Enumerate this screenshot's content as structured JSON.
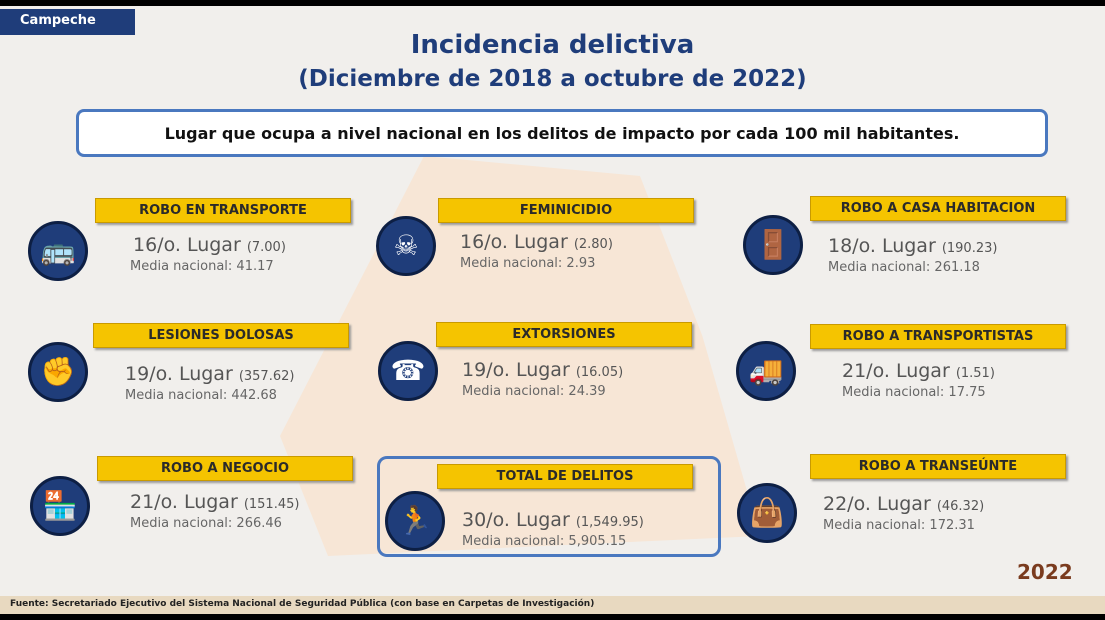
{
  "state": "Campeche",
  "title": "Incidencia delictiva",
  "subtitle": "(Diciembre de 2018 a octubre de 2022)",
  "description": "Lugar que ocupa a nivel nacional en los delitos de impacto por cada 100 mil habitantes.",
  "crimes": [
    {
      "name": "ROBO  EN TRANSPORTE",
      "lugar": "16/o. Lugar",
      "valor": "(7.00)",
      "media": "Media nacional:  41.17",
      "icon": "bus-icon"
    },
    {
      "name": "FEMINICIDIO",
      "lugar": "16/o. Lugar",
      "valor": "(2.80)",
      "media": "Media nacional: 2.93",
      "icon": "victim-icon"
    },
    {
      "name": "ROBO A CASA HABITACION",
      "lugar": "18/o. Lugar",
      "valor": "(190.23)",
      "media": "Media nacional:  261.18",
      "icon": "door-intruder-icon"
    },
    {
      "name": "LESIONES DOLOSAS",
      "lugar": "19/o. Lugar",
      "valor": "(357.62)",
      "media": "Media nacional: 442.68",
      "icon": "assault-icon"
    },
    {
      "name": "EXTORSIONES",
      "lugar": "19/o. Lugar",
      "valor": "(16.05)",
      "media": "Media nacional:  24.39",
      "icon": "extortion-icon"
    },
    {
      "name": "ROBO A TRANSPORTISTAS",
      "lugar": "21/o. Lugar",
      "valor": "(1.51)",
      "media": "Media nacional: 17.75",
      "icon": "truck-icon"
    },
    {
      "name": "ROBO A NEGOCIO",
      "lugar": "21/o. Lugar",
      "valor": "(151.45)",
      "media": "Media nacional: 266.46",
      "icon": "store-robbery-icon"
    },
    {
      "name": "TOTAL DE DELITOS",
      "lugar": "30/o. Lugar",
      "valor": "(1,549.95)",
      "media": "Media nacional: 5,905.15",
      "icon": "thief-icon"
    },
    {
      "name": "ROBO A TRANSEÚNTE",
      "lugar": "22/o. Lugar",
      "valor": "(46.32)",
      "media": "Media nacional:  172.31",
      "icon": "pedestrian-robbery-icon"
    }
  ],
  "footer": "Fuente: Secretariado Ejecutivo del Sistema Nacional de Seguridad Pública (con base en Carpetas de Investigación)",
  "logo_text": "2022"
}
